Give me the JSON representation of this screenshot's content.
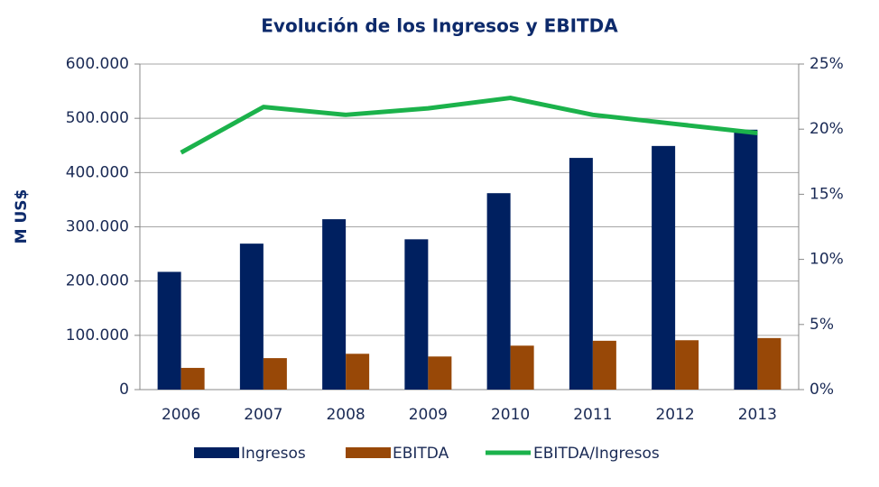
{
  "chart_data": {
    "type": "bar",
    "title": "Evolución de los Ingresos y EBITDA",
    "y_label": "M US$",
    "categories": [
      "2006",
      "2007",
      "2008",
      "2009",
      "2010",
      "2011",
      "2012",
      "2013"
    ],
    "series": [
      {
        "name": "Ingresos",
        "color": "#002060",
        "values": [
          217000,
          269000,
          314000,
          277000,
          362000,
          427000,
          449000,
          479000
        ]
      },
      {
        "name": "EBITDA",
        "color": "#984807",
        "values": [
          40000,
          58000,
          66000,
          61000,
          81000,
          90000,
          91000,
          95000
        ]
      },
      {
        "name": "EBITDA/Ingresos",
        "color": "#1bb24b",
        "type": "line",
        "axis": "y2",
        "values": [
          18.2,
          21.7,
          21.1,
          21.6,
          22.4,
          21.1,
          20.4,
          19.7
        ]
      }
    ],
    "ylim": [
      0,
      600000
    ],
    "yticks": [
      0,
      {
        "value": 100000,
        "label": "100.000"
      },
      {
        "value": 200000,
        "label": "200.000"
      },
      {
        "value": 300000,
        "label": "300.000"
      },
      {
        "value": 400000,
        "label": "400.000"
      },
      {
        "value": 500000,
        "label": "500.000"
      },
      {
        "value": 600000,
        "label": "600.000"
      }
    ],
    "y2lim": [
      0,
      25
    ],
    "y2ticks": [
      {
        "value": 0,
        "label": "0%"
      },
      {
        "value": 5,
        "label": "5%"
      },
      {
        "value": 10,
        "label": "10%"
      },
      {
        "value": 15,
        "label": "15%"
      },
      {
        "value": 20,
        "label": "20%"
      },
      {
        "value": 25,
        "label": "25%"
      }
    ],
    "grid": true,
    "legend": "bottom"
  }
}
